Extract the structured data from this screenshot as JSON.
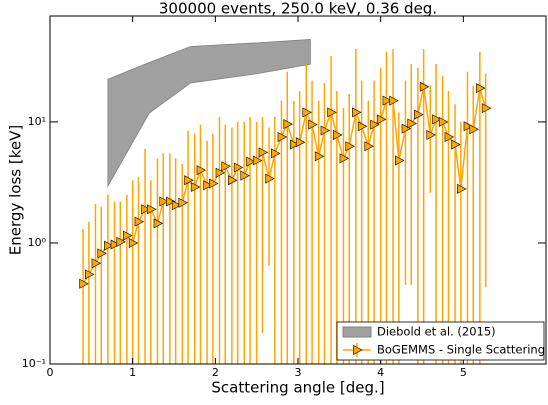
{
  "chart_data": {
    "type": "scatter",
    "title": "300000 events, 250.0 keV, 0.36 deg.",
    "x_label": "Scattering angle [deg.]",
    "y_label": "Energy loss [keV]",
    "xlim": [
      0,
      6
    ],
    "xticks": [
      0,
      1,
      2,
      3,
      4,
      5
    ],
    "ylim": [
      0.1,
      75
    ],
    "yticks": [
      {
        "value": 0.1,
        "label": "10⁻¹"
      },
      {
        "value": 1,
        "label": "10⁰"
      },
      {
        "value": 10,
        "label": "10¹"
      }
    ],
    "log_y": true,
    "legend": "lower right",
    "series": [
      {
        "name": "Diebold et al. (2015)",
        "color": "#a0a0a0",
        "kind": "band",
        "x": [
          0.7,
          1.2,
          1.7,
          2.5,
          3.15
        ],
        "lower": [
          2.95,
          11.8,
          21,
          25,
          30
        ],
        "upper": [
          22.5,
          31,
          42,
          45,
          48
        ]
      },
      {
        "name": "BoGEMMS - Single Scattering",
        "color": "#ffa500",
        "kind": "errorbar",
        "x": [
          0.4,
          0.47,
          0.55,
          0.62,
          0.7,
          0.78,
          0.85,
          0.93,
          1.0,
          1.07,
          1.15,
          1.22,
          1.3,
          1.37,
          1.45,
          1.52,
          1.6,
          1.67,
          1.75,
          1.82,
          1.9,
          1.97,
          2.05,
          2.12,
          2.2,
          2.27,
          2.35,
          2.42,
          2.5,
          2.57,
          2.65,
          2.72,
          2.8,
          2.87,
          2.95,
          3.02,
          3.1,
          3.17,
          3.25,
          3.32,
          3.4,
          3.47,
          3.55,
          3.62,
          3.7,
          3.77,
          3.85,
          3.92,
          4.0,
          4.07,
          4.15,
          4.22,
          4.3,
          4.37,
          4.45,
          4.52,
          4.6,
          4.67,
          4.75,
          4.82,
          4.9,
          4.97,
          5.05,
          5.12,
          5.2,
          5.27
        ],
        "values": [
          0.46,
          0.55,
          0.68,
          0.82,
          0.95,
          0.97,
          1.02,
          1.15,
          1.0,
          1.5,
          1.9,
          1.9,
          1.45,
          2.2,
          2.2,
          2.05,
          2.15,
          3.3,
          2.9,
          4.0,
          3.0,
          3.1,
          3.8,
          4.3,
          3.3,
          4.2,
          3.6,
          4.7,
          4.8,
          5.6,
          3.4,
          5.5,
          7.5,
          9.6,
          6.5,
          6.8,
          12,
          9.5,
          5.2,
          8.5,
          12,
          7.8,
          5.0,
          6.3,
          12,
          9.2,
          6.3,
          9.5,
          10.5,
          15,
          15,
          4.8,
          8.8,
          9.7,
          11.5,
          19.5,
          7.8,
          10.5,
          10,
          7.5,
          6.5,
          2.8,
          9.2,
          8.7,
          19,
          13
        ],
        "lower": [
          0.05,
          0.05,
          0.05,
          0.05,
          0.05,
          0.05,
          0.05,
          0.05,
          0.05,
          0.05,
          0.05,
          0.05,
          0.05,
          0.05,
          0.05,
          0.05,
          0.05,
          0.05,
          0.05,
          0.05,
          0.05,
          0.05,
          0.05,
          0.05,
          0.05,
          0.05,
          0.05,
          0.05,
          0.05,
          0.18,
          0.65,
          0.05,
          0.05,
          0.05,
          0.05,
          0.05,
          0.05,
          0.05,
          0.05,
          0.05,
          0.05,
          0.05,
          0.05,
          0.05,
          0.05,
          0.05,
          0.05,
          0.05,
          0.05,
          0.05,
          0.05,
          0.05,
          0.45,
          0.45,
          0.05,
          0.05,
          2.6,
          0.05,
          0.05,
          0.05,
          0.05,
          0.05,
          0.05,
          0.05,
          0.05,
          0.43
        ],
        "upper": [
          1.3,
          1.5,
          2.1,
          2.0,
          2.5,
          2.2,
          2.2,
          2.5,
          3.3,
          3.5,
          6,
          3.3,
          5,
          5.5,
          5.5,
          5,
          4.5,
          8.5,
          8,
          9.5,
          7,
          8,
          11,
          9.5,
          9,
          10,
          10,
          11,
          10,
          11,
          9,
          11,
          15,
          26,
          15,
          18,
          30,
          22,
          15,
          21,
          35,
          18,
          13,
          17,
          40,
          22,
          15,
          22,
          28,
          38,
          40,
          12,
          22,
          30,
          28,
          40,
          20,
          30,
          24,
          18,
          14,
          10,
          26,
          20,
          38,
          25
        ]
      }
    ]
  }
}
